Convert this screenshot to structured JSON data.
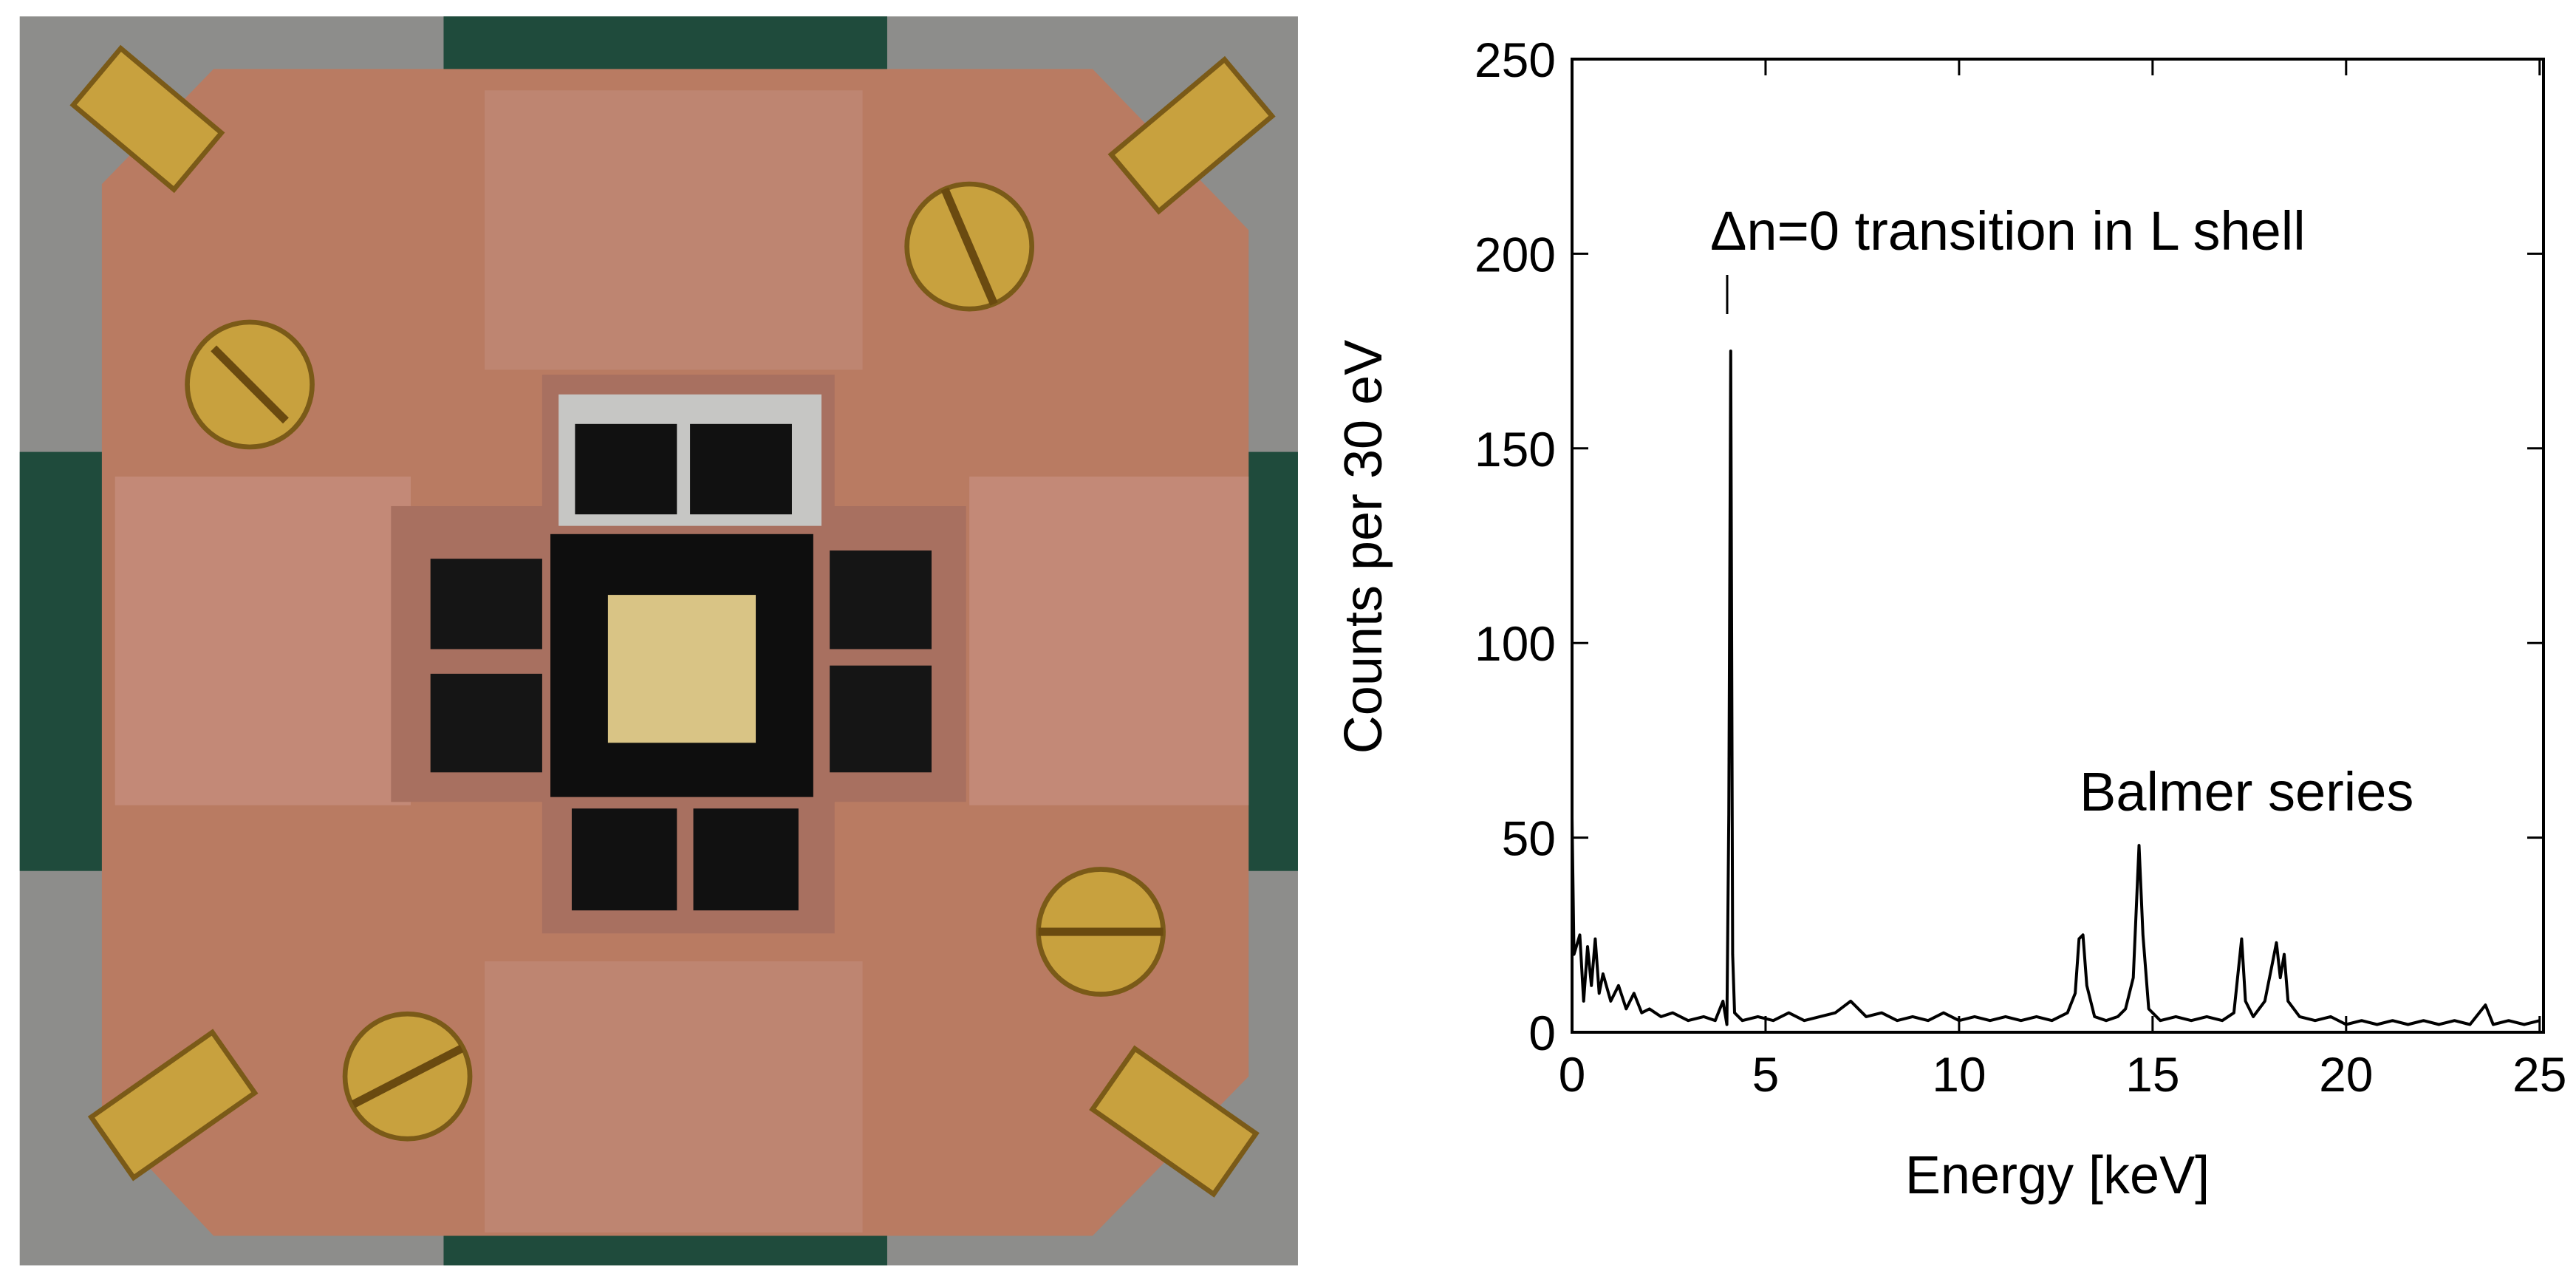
{
  "chart_data": {
    "type": "line",
    "annotations": [
      "Δn=0 transition in L shell",
      "Balmer series"
    ],
    "x_label": "Energy [keV]",
    "y_label": "Counts per 30 eV",
    "xlim": [
      0,
      25.1
    ],
    "ylim": [
      0,
      250
    ],
    "xticks": [
      0,
      5,
      10,
      15,
      20,
      25
    ],
    "yticks": [
      0,
      50,
      100,
      150,
      200,
      250
    ],
    "series": [
      {
        "color": "#000000",
        "x": [
          0,
          0.05,
          0.2,
          0.3,
          0.4,
          0.5,
          0.6,
          0.7,
          0.8,
          1.0,
          1.2,
          1.4,
          1.6,
          1.8,
          2.0,
          2.3,
          2.6,
          3.0,
          3.4,
          3.7,
          3.9,
          4.0,
          4.05,
          4.1,
          4.15,
          4.2,
          4.4,
          4.8,
          5.2,
          5.6,
          6.0,
          6.4,
          6.8,
          7.2,
          7.6,
          8.0,
          8.4,
          8.8,
          9.2,
          9.6,
          10.0,
          10.4,
          10.8,
          11.2,
          11.6,
          12.0,
          12.4,
          12.8,
          13.0,
          13.1,
          13.2,
          13.3,
          13.5,
          13.8,
          14.1,
          14.3,
          14.5,
          14.65,
          14.75,
          14.9,
          15.2,
          15.6,
          16.0,
          16.4,
          16.8,
          17.1,
          17.3,
          17.4,
          17.6,
          17.9,
          18.1,
          18.2,
          18.3,
          18.4,
          18.5,
          18.8,
          19.2,
          19.6,
          20.0,
          20.4,
          20.8,
          21.2,
          21.6,
          22.0,
          22.4,
          22.8,
          23.2,
          23.6,
          23.8,
          24.2,
          24.6,
          25.0
        ],
        "values": [
          55,
          20,
          25,
          8,
          22,
          12,
          24,
          10,
          15,
          8,
          12,
          6,
          10,
          5,
          6,
          4,
          5,
          3,
          4,
          3,
          8,
          2,
          56,
          175,
          20,
          5,
          3,
          4,
          3,
          5,
          3,
          4,
          5,
          8,
          4,
          5,
          3,
          4,
          3,
          5,
          3,
          4,
          3,
          4,
          3,
          4,
          3,
          5,
          10,
          24,
          25,
          12,
          4,
          3,
          4,
          6,
          14,
          48,
          25,
          6,
          3,
          4,
          3,
          4,
          3,
          5,
          24,
          8,
          4,
          8,
          18,
          23,
          14,
          20,
          8,
          4,
          3,
          4,
          2,
          3,
          2,
          3,
          2,
          3,
          2,
          3,
          2,
          7,
          2,
          3,
          2,
          3
        ]
      }
    ]
  }
}
